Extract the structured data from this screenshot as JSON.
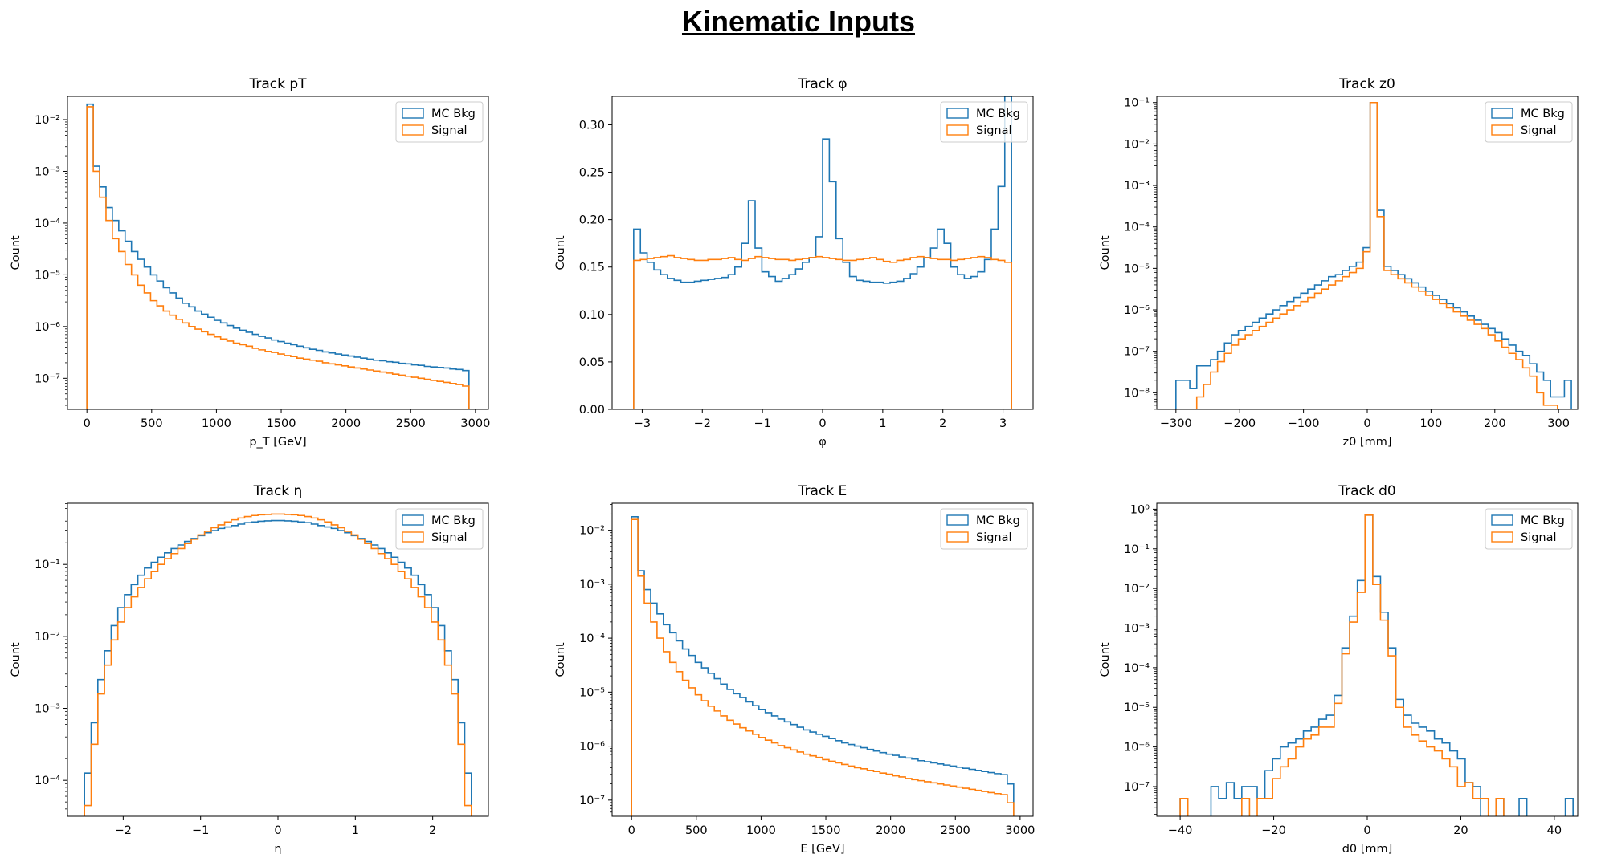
{
  "page": {
    "title": "Kinematic Inputs"
  },
  "colors": {
    "mc_bkg": "#1f77b4",
    "signal": "#ff7f0e"
  },
  "chart_data": [
    {
      "type": "step-histogram",
      "title": "Track pT",
      "xlabel": "p_T [GeV]",
      "ylabel": "Count",
      "yscale": "log",
      "xlim": [
        -150,
        3100
      ],
      "ylim_exp": [
        -7.6,
        -1.55
      ],
      "xticks": [
        0,
        500,
        1000,
        1500,
        2000,
        2500,
        3000
      ],
      "yticks": [
        -7,
        -6,
        -5,
        -4,
        -3,
        -2
      ],
      "legend_placement": "upper-right",
      "bin_range": [
        0,
        2950
      ],
      "series": [
        {
          "name": "MC Bkg",
          "color": "#1f77b4",
          "log10_values": [
            -1.7,
            -2.9,
            -3.3,
            -3.7,
            -3.95,
            -4.15,
            -4.35,
            -4.55,
            -4.7,
            -4.85,
            -5.0,
            -5.12,
            -5.25,
            -5.35,
            -5.45,
            -5.55,
            -5.62,
            -5.7,
            -5.76,
            -5.82,
            -5.88,
            -5.93,
            -5.98,
            -6.03,
            -6.07,
            -6.11,
            -6.15,
            -6.19,
            -6.22,
            -6.26,
            -6.29,
            -6.32,
            -6.35,
            -6.38,
            -6.41,
            -6.44,
            -6.46,
            -6.49,
            -6.51,
            -6.53,
            -6.55,
            -6.57,
            -6.59,
            -6.61,
            -6.63,
            -6.65,
            -6.66,
            -6.68,
            -6.69,
            -6.71,
            -6.72,
            -6.74,
            -6.75,
            -6.77,
            -6.78,
            -6.79,
            -6.8,
            -6.82,
            -6.83,
            -6.85
          ]
        },
        {
          "name": "Signal",
          "color": "#ff7f0e",
          "log10_values": [
            -1.75,
            -3.0,
            -3.5,
            -3.95,
            -4.3,
            -4.55,
            -4.8,
            -5.0,
            -5.2,
            -5.35,
            -5.5,
            -5.6,
            -5.7,
            -5.78,
            -5.86,
            -5.93,
            -6.0,
            -6.05,
            -6.1,
            -6.15,
            -6.2,
            -6.24,
            -6.28,
            -6.32,
            -6.35,
            -6.38,
            -6.42,
            -6.45,
            -6.48,
            -6.5,
            -6.53,
            -6.56,
            -6.58,
            -6.61,
            -6.63,
            -6.65,
            -6.67,
            -6.7,
            -6.72,
            -6.74,
            -6.76,
            -6.78,
            -6.8,
            -6.82,
            -6.84,
            -6.86,
            -6.88,
            -6.9,
            -6.92,
            -6.94,
            -6.96,
            -6.98,
            -7.0,
            -7.02,
            -7.04,
            -7.06,
            -7.08,
            -7.1,
            -7.12,
            -7.15
          ]
        }
      ]
    },
    {
      "type": "step-histogram",
      "title": "Track φ",
      "xlabel": "φ",
      "ylabel": "Count",
      "yscale": "linear",
      "xlim": [
        -3.5,
        3.5
      ],
      "ylim": [
        0,
        0.33
      ],
      "xticks": [
        -3,
        -2,
        -1,
        0,
        1,
        2,
        3
      ],
      "ytick_labels": [
        "0.00",
        "0.05",
        "0.10",
        "0.15",
        "0.20",
        "0.25",
        "0.30"
      ],
      "yticks": [
        0,
        0.05,
        0.1,
        0.15,
        0.2,
        0.25,
        0.3
      ],
      "legend_placement": "upper-right",
      "bin_range": [
        -3.1416,
        3.1416
      ],
      "series": [
        {
          "name": "MC Bkg",
          "color": "#1f77b4",
          "values": [
            0.19,
            0.165,
            0.155,
            0.147,
            0.142,
            0.138,
            0.136,
            0.134,
            0.134,
            0.135,
            0.136,
            0.137,
            0.138,
            0.139,
            0.142,
            0.15,
            0.175,
            0.22,
            0.17,
            0.145,
            0.14,
            0.135,
            0.138,
            0.142,
            0.148,
            0.155,
            0.16,
            0.182,
            0.285,
            0.24,
            0.18,
            0.155,
            0.14,
            0.136,
            0.135,
            0.134,
            0.134,
            0.133,
            0.134,
            0.135,
            0.138,
            0.143,
            0.15,
            0.16,
            0.17,
            0.19,
            0.175,
            0.15,
            0.142,
            0.138,
            0.14,
            0.145,
            0.158,
            0.19,
            0.235,
            0.33
          ]
        },
        {
          "name": "Signal",
          "color": "#ff7f0e",
          "values": [
            0.157,
            0.158,
            0.159,
            0.16,
            0.161,
            0.162,
            0.16,
            0.159,
            0.158,
            0.157,
            0.157,
            0.158,
            0.158,
            0.159,
            0.16,
            0.158,
            0.157,
            0.159,
            0.161,
            0.16,
            0.159,
            0.158,
            0.158,
            0.157,
            0.158,
            0.159,
            0.16,
            0.161,
            0.16,
            0.159,
            0.158,
            0.157,
            0.157,
            0.158,
            0.159,
            0.16,
            0.158,
            0.156,
            0.155,
            0.157,
            0.158,
            0.16,
            0.161,
            0.16,
            0.159,
            0.158,
            0.158,
            0.157,
            0.158,
            0.159,
            0.16,
            0.161,
            0.16,
            0.158,
            0.157,
            0.155
          ]
        }
      ]
    },
    {
      "type": "step-histogram",
      "title": "Track z0",
      "xlabel": "z0 [mm]",
      "ylabel": "Count",
      "yscale": "log",
      "xlim": [
        -330,
        330
      ],
      "ylim_exp": [
        -8.4,
        -0.85
      ],
      "xticks": [
        -300,
        -200,
        -100,
        0,
        100,
        200,
        300
      ],
      "yticks": [
        -8,
        -7,
        -6,
        -5,
        -4,
        -3,
        -2,
        -1
      ],
      "legend_placement": "upper-right",
      "bin_range": [
        -300,
        320
      ],
      "series": [
        {
          "name": "MC Bkg",
          "color": "#1f77b4",
          "log10_values": [
            -7.7,
            -7.7,
            -7.9,
            -7.35,
            -7.35,
            -7.2,
            -7.0,
            -6.8,
            -6.6,
            -6.5,
            -6.4,
            -6.3,
            -6.2,
            -6.1,
            -6.0,
            -5.9,
            -5.8,
            -5.7,
            -5.6,
            -5.5,
            -5.4,
            -5.3,
            -5.2,
            -5.15,
            -5.05,
            -4.95,
            -4.85,
            -4.5,
            -1.0,
            -3.6,
            -4.95,
            -5.05,
            -5.15,
            -5.25,
            -5.35,
            -5.45,
            -5.55,
            -5.65,
            -5.75,
            -5.85,
            -5.95,
            -6.05,
            -6.15,
            -6.25,
            -6.35,
            -6.45,
            -6.55,
            -6.7,
            -6.85,
            -7.0,
            -7.1,
            -7.3,
            -7.5,
            -7.7,
            -8.1,
            -8.1,
            -7.7
          ]
        },
        {
          "name": "Signal",
          "color": "#ff7f0e",
          "log10_values": [
            null,
            null,
            null,
            -8.1,
            -7.8,
            -7.5,
            -7.25,
            -7.05,
            -6.85,
            -6.7,
            -6.6,
            -6.5,
            -6.4,
            -6.3,
            -6.2,
            -6.1,
            -6.0,
            -5.9,
            -5.8,
            -5.7,
            -5.6,
            -5.5,
            -5.4,
            -5.3,
            -5.2,
            -5.1,
            -5.0,
            -4.6,
            -1.0,
            -3.75,
            -5.05,
            -5.15,
            -5.25,
            -5.35,
            -5.45,
            -5.55,
            -5.65,
            -5.75,
            -5.85,
            -5.95,
            -6.05,
            -6.15,
            -6.25,
            -6.35,
            -6.45,
            -6.6,
            -6.75,
            -6.9,
            -7.05,
            -7.2,
            -7.4,
            -7.6,
            -8.0,
            -8.3,
            -8.3,
            null,
            null
          ]
        }
      ]
    },
    {
      "type": "step-histogram",
      "title": "Track η",
      "xlabel": "η",
      "ylabel": "Count",
      "yscale": "log",
      "xlim": [
        -2.72,
        2.72
      ],
      "ylim_exp": [
        -4.5,
        -0.15
      ],
      "xticks": [
        -2,
        -1,
        0,
        1,
        2
      ],
      "yticks": [
        -4,
        -3,
        -2,
        -1
      ],
      "legend_placement": "upper-right",
      "bin_range": [
        -2.5,
        2.5
      ],
      "series": [
        {
          "name": "MC Bkg",
          "color": "#1f77b4",
          "log10_values": [
            -3.9,
            -3.2,
            -2.6,
            -2.2,
            -1.85,
            -1.6,
            -1.42,
            -1.28,
            -1.15,
            -1.05,
            -0.97,
            -0.9,
            -0.84,
            -0.78,
            -0.73,
            -0.68,
            -0.64,
            -0.6,
            -0.56,
            -0.53,
            -0.5,
            -0.48,
            -0.46,
            -0.44,
            -0.42,
            -0.41,
            -0.4,
            -0.395,
            -0.39,
            -0.39,
            -0.395,
            -0.4,
            -0.41,
            -0.42,
            -0.44,
            -0.46,
            -0.48,
            -0.5,
            -0.53,
            -0.56,
            -0.6,
            -0.64,
            -0.68,
            -0.73,
            -0.78,
            -0.84,
            -0.9,
            -0.97,
            -1.05,
            -1.15,
            -1.28,
            -1.42,
            -1.6,
            -1.85,
            -2.2,
            -2.6,
            -3.2,
            -3.9
          ]
        },
        {
          "name": "Signal",
          "color": "#ff7f0e",
          "log10_values": [
            -4.35,
            -3.5,
            -2.8,
            -2.4,
            -2.05,
            -1.8,
            -1.6,
            -1.45,
            -1.32,
            -1.2,
            -1.1,
            -1.0,
            -0.92,
            -0.85,
            -0.78,
            -0.71,
            -0.65,
            -0.59,
            -0.54,
            -0.49,
            -0.45,
            -0.41,
            -0.38,
            -0.355,
            -0.335,
            -0.32,
            -0.31,
            -0.305,
            -0.3,
            -0.3,
            -0.305,
            -0.31,
            -0.32,
            -0.335,
            -0.355,
            -0.38,
            -0.41,
            -0.45,
            -0.49,
            -0.54,
            -0.59,
            -0.65,
            -0.71,
            -0.78,
            -0.85,
            -0.92,
            -1.0,
            -1.1,
            -1.2,
            -1.32,
            -1.45,
            -1.6,
            -1.8,
            -2.05,
            -2.4,
            -2.8,
            -3.5,
            -4.35
          ]
        }
      ]
    },
    {
      "type": "step-histogram",
      "title": "Track E",
      "xlabel": "E [GeV]",
      "ylabel": "Count",
      "yscale": "log",
      "xlim": [
        -150,
        3100
      ],
      "ylim_exp": [
        -7.3,
        -1.5
      ],
      "xticks": [
        0,
        500,
        1000,
        1500,
        2000,
        2500,
        3000
      ],
      "yticks": [
        -7,
        -6,
        -5,
        -4,
        -3,
        -2
      ],
      "legend_placement": "upper-right",
      "bin_range": [
        0,
        2950
      ],
      "series": [
        {
          "name": "MC Bkg",
          "color": "#1f77b4",
          "log10_values": [
            -1.75,
            -2.75,
            -3.1,
            -3.35,
            -3.55,
            -3.75,
            -3.9,
            -4.05,
            -4.2,
            -4.32,
            -4.45,
            -4.55,
            -4.65,
            -4.75,
            -4.85,
            -4.95,
            -5.03,
            -5.1,
            -5.18,
            -5.25,
            -5.32,
            -5.38,
            -5.44,
            -5.5,
            -5.55,
            -5.6,
            -5.65,
            -5.7,
            -5.74,
            -5.78,
            -5.82,
            -5.86,
            -5.9,
            -5.94,
            -5.97,
            -6.0,
            -6.03,
            -6.06,
            -6.09,
            -6.12,
            -6.15,
            -6.17,
            -6.2,
            -6.22,
            -6.24,
            -6.27,
            -6.29,
            -6.31,
            -6.33,
            -6.35,
            -6.37,
            -6.39,
            -6.41,
            -6.43,
            -6.45,
            -6.47,
            -6.49,
            -6.51,
            -6.53,
            -6.7
          ]
        },
        {
          "name": "Signal",
          "color": "#ff7f0e",
          "log10_values": [
            -1.8,
            -2.85,
            -3.35,
            -3.7,
            -4.0,
            -4.25,
            -4.45,
            -4.62,
            -4.78,
            -4.92,
            -5.05,
            -5.16,
            -5.26,
            -5.35,
            -5.44,
            -5.52,
            -5.59,
            -5.66,
            -5.72,
            -5.78,
            -5.84,
            -5.89,
            -5.94,
            -5.99,
            -6.03,
            -6.07,
            -6.11,
            -6.15,
            -6.18,
            -6.21,
            -6.25,
            -6.28,
            -6.31,
            -6.34,
            -6.37,
            -6.4,
            -6.42,
            -6.45,
            -6.47,
            -6.5,
            -6.52,
            -6.55,
            -6.57,
            -6.6,
            -6.62,
            -6.64,
            -6.66,
            -6.68,
            -6.7,
            -6.72,
            -6.74,
            -6.76,
            -6.78,
            -6.8,
            -6.82,
            -6.84,
            -6.86,
            -6.88,
            -6.9,
            -7.05
          ]
        }
      ]
    },
    {
      "type": "step-histogram",
      "title": "Track d0",
      "xlabel": "d0 [mm]",
      "ylabel": "Count",
      "yscale": "log",
      "xlim": [
        -45,
        45
      ],
      "ylim_exp": [
        -7.75,
        0.15
      ],
      "xticks": [
        -40,
        -20,
        0,
        20,
        40
      ],
      "yticks": [
        -7,
        -6,
        -5,
        -4,
        -3,
        -2,
        -1,
        0
      ],
      "legend_placement": "upper-right",
      "bin_range": [
        -40,
        44
      ],
      "series": [
        {
          "name": "MC Bkg",
          "color": "#1f77b4",
          "log10_values": [
            -7.3,
            null,
            null,
            null,
            -7.0,
            -7.3,
            -6.9,
            -7.3,
            -7.0,
            -7.0,
            -7.3,
            -6.6,
            -6.3,
            -6.0,
            -5.9,
            -5.8,
            -5.6,
            -5.5,
            -5.3,
            -5.2,
            -4.7,
            -3.5,
            -2.7,
            -1.8,
            -0.15,
            -1.7,
            -2.6,
            -3.5,
            -4.8,
            -5.2,
            -5.4,
            -5.5,
            -5.6,
            -5.8,
            -5.9,
            -6.1,
            -6.3,
            -6.9,
            -7.0,
            null,
            null,
            -7.3,
            null,
            null,
            -7.3,
            null,
            null,
            null,
            null,
            null,
            -7.3
          ]
        },
        {
          "name": "Signal",
          "color": "#ff7f0e",
          "log10_values": [
            -7.3,
            null,
            null,
            null,
            null,
            null,
            null,
            null,
            -7.3,
            null,
            -7.3,
            -7.3,
            -6.8,
            -6.5,
            -6.3,
            -6.0,
            -5.8,
            -5.7,
            -5.5,
            -5.5,
            -4.9,
            -3.65,
            -2.85,
            -2.1,
            -0.15,
            -1.9,
            -2.8,
            -3.7,
            -5.0,
            -5.5,
            -5.7,
            -5.85,
            -6.0,
            -6.1,
            -6.3,
            -6.5,
            -7.0,
            -6.9,
            -7.3,
            -7.3,
            null,
            -7.3,
            null,
            null,
            null,
            null,
            null,
            null,
            null,
            null,
            null
          ]
        }
      ]
    }
  ]
}
